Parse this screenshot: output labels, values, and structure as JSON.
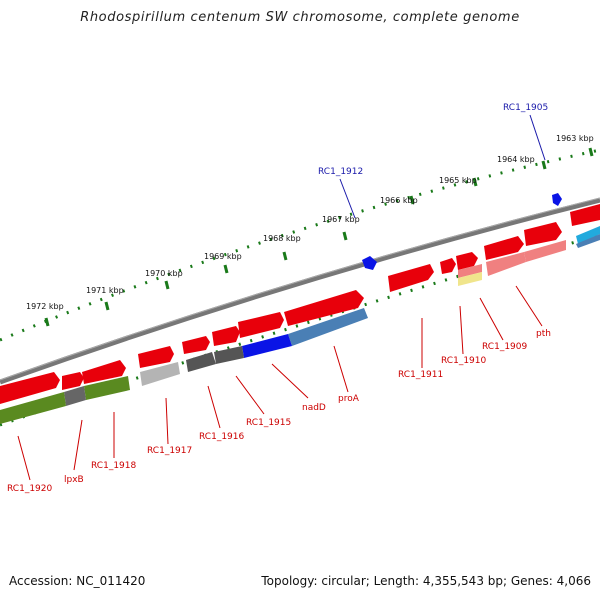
{
  "title": "Rhodospirillum centenum SW chromosome, complete genome",
  "footer": {
    "accession": "Accession: NC_011420",
    "topology": "Topology: circular; Length: 4,355,543 bp; Genes: 4,066"
  },
  "colors": {
    "gene_red": "#e8000b",
    "gene_blue": "#0a14e6",
    "gene_steel": "#4a7fb5",
    "gene_olive": "#5a8a20",
    "gene_gray": "#555555",
    "gene_lightgray": "#b4b4b4",
    "gene_pink": "#f08080",
    "gene_cyan": "#22aadd",
    "gene_yellow": "#f0e58c",
    "backbone": "#808080",
    "ticks": "#1a7a1a",
    "label_red": "#cc0000",
    "label_blue": "#1a1aaa"
  },
  "scale_labels": [
    "1963 kbp",
    "1964 kbp",
    "1965 kbp",
    "1966 kbp",
    "1967 kbp",
    "1968 kbp",
    "1969 kbp",
    "1970 kbp",
    "1971 kbp",
    "1972 kbp"
  ],
  "top_labels": [
    "RC1_1905",
    "RC1_1912"
  ],
  "bottom_labels": [
    "pth",
    "RC1_1909",
    "RC1_1910",
    "RC1_1911",
    "proA",
    "nadD",
    "RC1_1915",
    "RC1_1916",
    "RC1_1917",
    "RC1_1918",
    "lpxB",
    "RC1_1920"
  ]
}
